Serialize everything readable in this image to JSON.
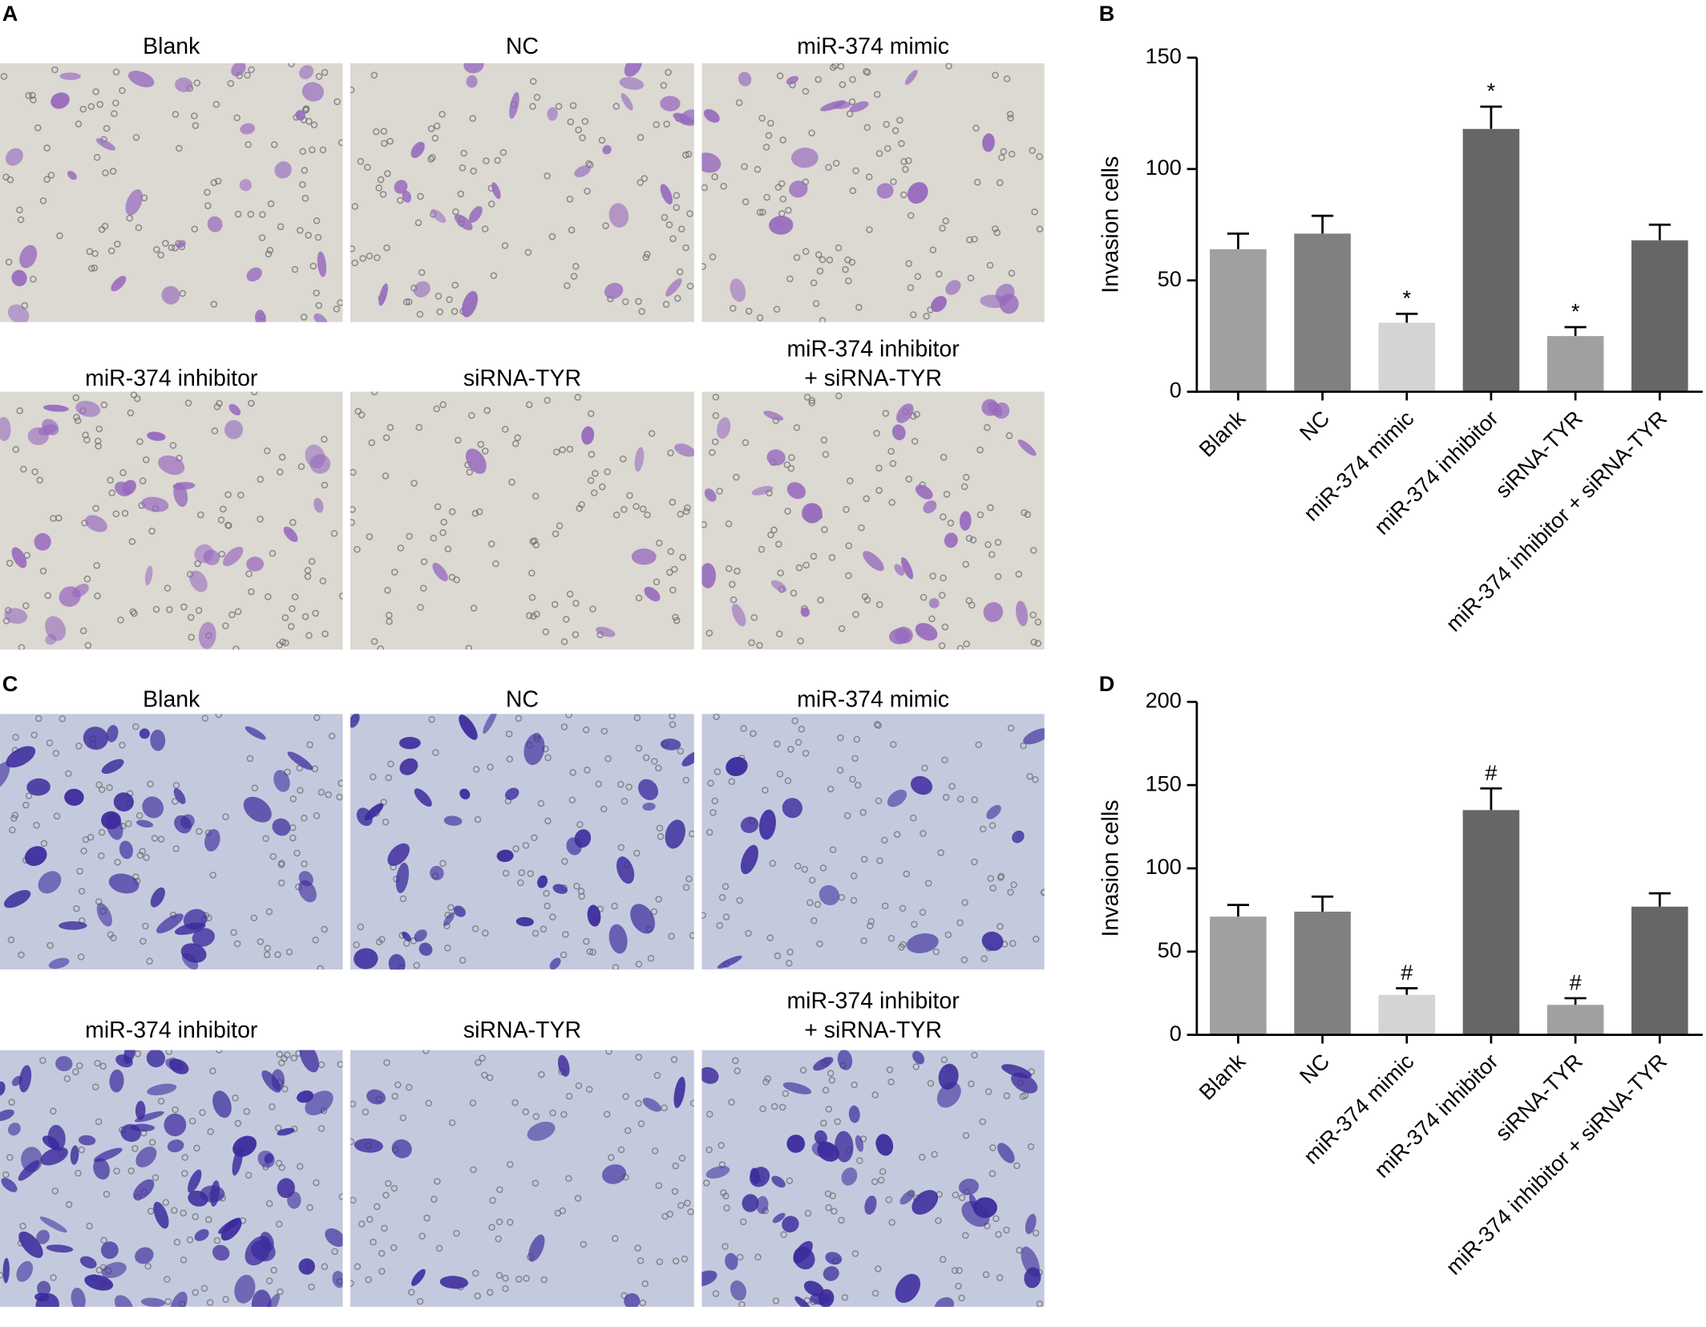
{
  "image_panels": [
    {
      "label": "A",
      "images": [
        {
          "title": [
            "Blank"
          ]
        },
        {
          "title": [
            "NC"
          ]
        },
        {
          "title": [
            "miR-374 mimic"
          ]
        },
        {
          "title": [
            "miR-374 inhibitor"
          ]
        },
        {
          "title": [
            "siRNA-TYR"
          ]
        },
        {
          "title": [
            "miR-374 inhibitor",
            "+ siRNA-TYR"
          ]
        }
      ]
    },
    {
      "label": "C",
      "images": [
        {
          "title": [
            "Blank"
          ]
        },
        {
          "title": [
            "NC"
          ]
        },
        {
          "title": [
            "miR-374 mimic"
          ]
        },
        {
          "title": [
            "miR-374 inhibitor"
          ]
        },
        {
          "title": [
            "siRNA-TYR"
          ]
        },
        {
          "title": [
            "miR-374 inhibitor",
            "+ siRNA-TYR"
          ]
        }
      ]
    }
  ],
  "chart_data": [
    {
      "type": "bar",
      "panel_label": "B",
      "ylabel": "Invasion cells",
      "categories": [
        "Blank",
        "NC",
        "miR-374 mimic",
        "miR-374 inhibitor",
        "siRNA-TYR",
        "miR-374 inhibitor + siRNA-TYR"
      ],
      "values": [
        64,
        71,
        31,
        118,
        25,
        68
      ],
      "errors": [
        7,
        8,
        4,
        10,
        4,
        7
      ],
      "annotations": [
        null,
        null,
        "*",
        "*",
        "*",
        null
      ],
      "colors": [
        "#a0a0a0",
        "#808080",
        "#d4d4d4",
        "#666666",
        "#a0a0a0",
        "#666666"
      ],
      "ylim": [
        0,
        150
      ],
      "yticks": [
        0,
        50,
        100,
        150
      ]
    },
    {
      "type": "bar",
      "panel_label": "D",
      "ylabel": "Invasion cells",
      "categories": [
        "Blank",
        "NC",
        "miR-374 mimic",
        "miR-374 inhibitor",
        "siRNA-TYR",
        "miR-374 inhibitor + siRNA-TYR"
      ],
      "values": [
        71,
        74,
        24,
        135,
        18,
        77
      ],
      "errors": [
        7,
        9,
        4,
        13,
        4,
        8
      ],
      "annotations": [
        null,
        null,
        "#",
        "#",
        "#",
        null
      ],
      "colors": [
        "#a0a0a0",
        "#808080",
        "#d4d4d4",
        "#666666",
        "#a0a0a0",
        "#666666"
      ],
      "ylim": [
        0,
        200
      ],
      "yticks": [
        0,
        50,
        100,
        150,
        200
      ]
    }
  ]
}
